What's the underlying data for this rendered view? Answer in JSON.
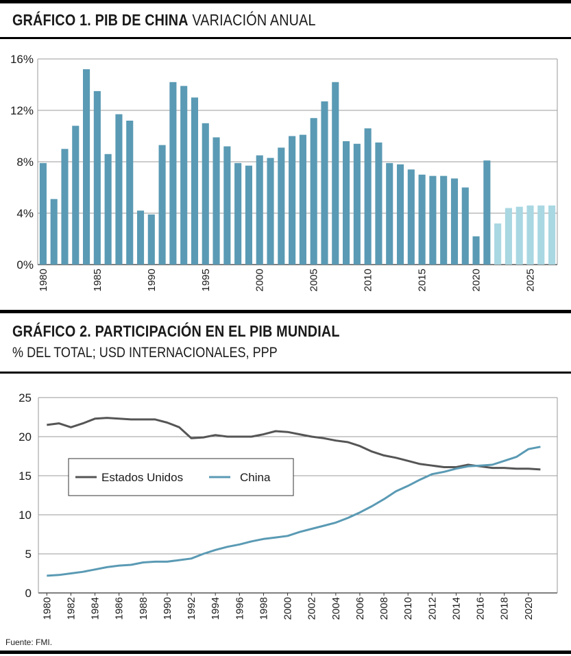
{
  "chart1": {
    "title_bold": "GRÁFICO 1. PIB DE CHINA",
    "title_rest": "VARIACIÓN ANUAL"
  },
  "chart2": {
    "title_bold": "GRÁFICO 2. PARTICIPACIÓN EN EL PIB MUNDIAL",
    "subtitle": "% DEL TOTAL; USD INTERNACIONALES, PPP"
  },
  "source": "Fuente: FMI.",
  "colors": {
    "bar": "#5a9ab4",
    "bar_projection": "#a9d7e2",
    "usa": "#555555",
    "china": "#5a9ab4",
    "grid": "#9a9a9a"
  },
  "chart_data": [
    {
      "type": "bar",
      "title": "GRÁFICO 1. PIB DE CHINA VARIACIÓN ANUAL",
      "xlabel": "",
      "ylabel": "",
      "ylim": [
        0,
        16
      ],
      "yticks": [
        "0%",
        "4%",
        "8%",
        "12%",
        "16%"
      ],
      "ytick_values": [
        0,
        4,
        8,
        12,
        16
      ],
      "xtick_labels": [
        "1980",
        "1985",
        "1990",
        "1995",
        "2000",
        "2005",
        "2010",
        "2015",
        "2020",
        "2025"
      ],
      "categories": [
        1980,
        1981,
        1982,
        1983,
        1984,
        1985,
        1986,
        1987,
        1988,
        1989,
        1990,
        1991,
        1992,
        1993,
        1994,
        1995,
        1996,
        1997,
        1998,
        1999,
        2000,
        2001,
        2002,
        2003,
        2004,
        2005,
        2006,
        2007,
        2008,
        2009,
        2010,
        2011,
        2012,
        2013,
        2014,
        2015,
        2016,
        2017,
        2018,
        2019,
        2020,
        2021,
        2022,
        2023,
        2024,
        2025,
        2026,
        2027
      ],
      "values": [
        7.9,
        5.1,
        9.0,
        10.8,
        15.2,
        13.5,
        8.6,
        11.7,
        11.2,
        4.2,
        3.9,
        9.3,
        14.2,
        13.9,
        13.0,
        11.0,
        9.9,
        9.2,
        7.9,
        7.7,
        8.5,
        8.3,
        9.1,
        10.0,
        10.1,
        11.4,
        12.7,
        14.2,
        9.6,
        9.4,
        10.6,
        9.5,
        7.9,
        7.8,
        7.4,
        7.0,
        6.9,
        6.9,
        6.7,
        6.0,
        2.2,
        8.1,
        3.2,
        4.4,
        4.5,
        4.6,
        4.6,
        4.6
      ],
      "projection_from": 2022,
      "grid": true
    },
    {
      "type": "line",
      "title": "GRÁFICO 2. PARTICIPACIÓN EN EL PIB MUNDIAL",
      "subtitle": "% DEL TOTAL; USD INTERNACIONALES, PPP",
      "ylim": [
        0,
        25
      ],
      "yticks": [
        "0",
        "5",
        "10",
        "15",
        "20",
        "25"
      ],
      "ytick_values": [
        0,
        5,
        10,
        15,
        20,
        25
      ],
      "xlim": [
        1980,
        2021
      ],
      "xtick_labels": [
        "1980",
        "1982",
        "1984",
        "1986",
        "1988",
        "1990",
        "1992",
        "1994",
        "1996",
        "1998",
        "2000",
        "2002",
        "2004",
        "2006",
        "2008",
        "2010",
        "2012",
        "2014",
        "2016",
        "2018",
        "2020"
      ],
      "x": [
        1980,
        1981,
        1982,
        1983,
        1984,
        1985,
        1986,
        1987,
        1988,
        1989,
        1990,
        1991,
        1992,
        1993,
        1994,
        1995,
        1996,
        1997,
        1998,
        1999,
        2000,
        2001,
        2002,
        2003,
        2004,
        2005,
        2006,
        2007,
        2008,
        2009,
        2010,
        2011,
        2012,
        2013,
        2014,
        2015,
        2016,
        2017,
        2018,
        2019,
        2020,
        2021
      ],
      "series": [
        {
          "name": "Estados Unidos",
          "values": [
            21.5,
            21.7,
            21.2,
            21.7,
            22.3,
            22.4,
            22.3,
            22.2,
            22.2,
            22.2,
            21.8,
            21.2,
            19.8,
            19.9,
            20.2,
            20.0,
            20.0,
            20.0,
            20.3,
            20.7,
            20.6,
            20.3,
            20.0,
            19.8,
            19.5,
            19.3,
            18.8,
            18.1,
            17.6,
            17.3,
            16.9,
            16.5,
            16.3,
            16.1,
            16.1,
            16.4,
            16.2,
            16.0,
            16.0,
            15.9,
            15.9,
            15.8
          ]
        },
        {
          "name": "China",
          "values": [
            2.2,
            2.3,
            2.5,
            2.7,
            3.0,
            3.3,
            3.5,
            3.6,
            3.9,
            4.0,
            4.0,
            4.2,
            4.4,
            5.0,
            5.5,
            5.9,
            6.2,
            6.6,
            6.9,
            7.1,
            7.3,
            7.8,
            8.2,
            8.6,
            9.0,
            9.6,
            10.3,
            11.1,
            12.0,
            13.0,
            13.7,
            14.5,
            15.2,
            15.5,
            15.9,
            16.2,
            16.3,
            16.4,
            16.9,
            17.4,
            18.4,
            18.7
          ]
        }
      ],
      "legend": "inside center-left",
      "grid": true
    }
  ]
}
